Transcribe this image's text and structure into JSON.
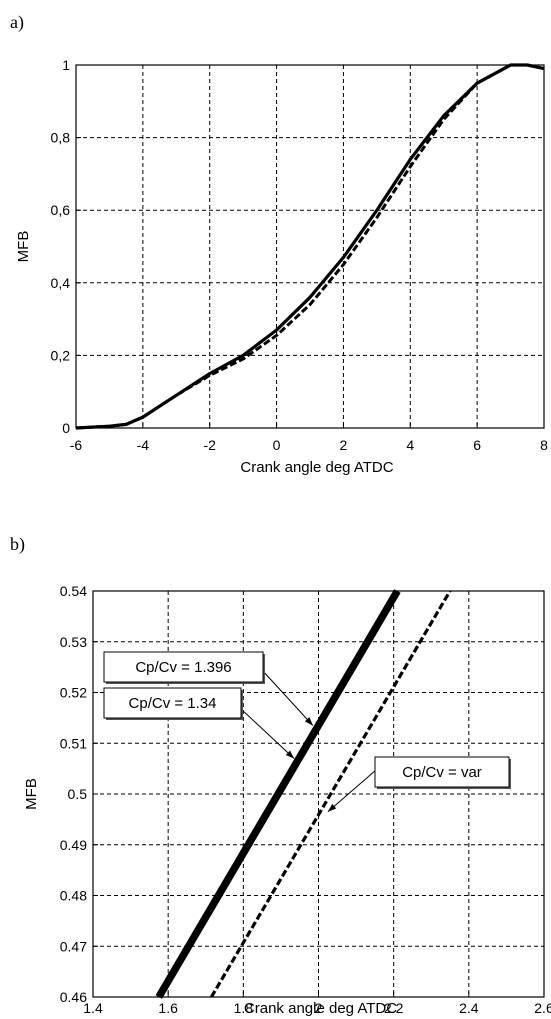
{
  "figure": {
    "panel_labels": [
      "a)",
      "b)"
    ]
  },
  "chart_data": [
    {
      "type": "line",
      "panel": "a)",
      "xlabel": "Crank angle deg ATDC",
      "ylabel": "MFB",
      "xlim": [
        -6,
        8
      ],
      "ylim": [
        0,
        1
      ],
      "xticks": [
        -6,
        -4,
        -2,
        0,
        2,
        4,
        6,
        8
      ],
      "xtick_labels": [
        "-6",
        "-4",
        "-2",
        "0",
        "2",
        "4",
        "6",
        "8"
      ],
      "yticks": [
        0,
        0.2,
        0.4,
        0.6,
        0.8,
        1
      ],
      "ytick_labels": [
        "0",
        "0,2",
        "0,4",
        "0,6",
        "0,8",
        "1"
      ],
      "grid": true,
      "series": [
        {
          "style": "solid",
          "x": [
            -6,
            -5,
            -4.5,
            -4,
            -3,
            -2,
            -1,
            0,
            1,
            2,
            3,
            4,
            5,
            6,
            7,
            7.5,
            8
          ],
          "y": [
            0,
            0.005,
            0.01,
            0.03,
            0.09,
            0.15,
            0.2,
            0.27,
            0.36,
            0.47,
            0.6,
            0.74,
            0.86,
            0.95,
            1.0,
            1.0,
            0.99
          ]
        },
        {
          "style": "dashed",
          "x": [
            -6,
            -5,
            -4.5,
            -4,
            -3,
            -2,
            -1,
            0,
            1,
            2,
            3,
            4,
            5,
            6,
            7,
            7.5,
            8
          ],
          "y": [
            0,
            0.005,
            0.01,
            0.03,
            0.09,
            0.145,
            0.19,
            0.255,
            0.34,
            0.45,
            0.58,
            0.72,
            0.85,
            0.95,
            1.0,
            1.0,
            0.99
          ]
        }
      ]
    },
    {
      "type": "line",
      "panel": "b)",
      "xlabel": "Crank angle deg ATDC",
      "ylabel": "MFB",
      "xlim": [
        1.4,
        2.6
      ],
      "ylim": [
        0.46,
        0.54
      ],
      "xticks": [
        1.4,
        1.6,
        1.8,
        2.0,
        2.2,
        2.4,
        2.6
      ],
      "xtick_labels": [
        "1.4",
        "1.6",
        "1.8",
        "2",
        "2.2",
        "2.4",
        "2.6"
      ],
      "yticks": [
        0.46,
        0.47,
        0.48,
        0.49,
        0.5,
        0.51,
        0.52,
        0.53,
        0.54
      ],
      "ytick_labels": [
        "0.46",
        "0.47",
        "0.48",
        "0.49",
        "0.5",
        "0.51",
        "0.52",
        "0.53",
        "0.54"
      ],
      "grid": true,
      "series": [
        {
          "style": "solid-thick",
          "x": [
            1.575,
            2.21
          ],
          "y": [
            0.46,
            0.54
          ]
        },
        {
          "style": "solid",
          "x": [
            1.575,
            2.21
          ],
          "y": [
            0.46,
            0.54
          ]
        },
        {
          "style": "dashed",
          "x": [
            1.715,
            2.35
          ],
          "y": [
            0.46,
            0.54
          ]
        }
      ],
      "annotations": [
        {
          "text": "Cp/Cv = 1.396",
          "arrow_to": [
            1.985,
            0.5135
          ]
        },
        {
          "text": "Cp/Cv = 1.34",
          "arrow_to": [
            1.935,
            0.507
          ]
        },
        {
          "text": "Cp/Cv = var",
          "arrow_to": [
            2.025,
            0.4965
          ]
        }
      ]
    }
  ]
}
